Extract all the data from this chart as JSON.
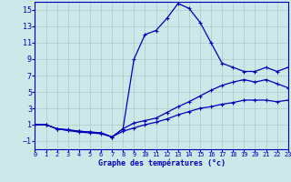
{
  "xlabel": "Graphe des températures (°c)",
  "bg_color": "#cce8e8",
  "grid_color": "#aacccc",
  "line_color": "#0000bb",
  "spine_color": "#0000bb",
  "xlim": [
    0,
    23
  ],
  "ylim": [
    -2,
    16
  ],
  "xticks": [
    0,
    1,
    2,
    3,
    4,
    5,
    6,
    7,
    8,
    9,
    10,
    11,
    12,
    13,
    14,
    15,
    16,
    17,
    18,
    19,
    20,
    21,
    22,
    23
  ],
  "yticks": [
    -1,
    1,
    3,
    5,
    7,
    9,
    11,
    13,
    15
  ],
  "series1_x": [
    0,
    1,
    2,
    3,
    4,
    5,
    6,
    7,
    8,
    9,
    10,
    11,
    12,
    13,
    14,
    15,
    16,
    17,
    18,
    19,
    20,
    21,
    22,
    23
  ],
  "series1_y": [
    1.0,
    1.0,
    0.5,
    0.3,
    0.2,
    0.1,
    0.0,
    -0.5,
    0.5,
    9.0,
    12.0,
    12.5,
    14.0,
    15.8,
    15.2,
    13.5,
    11.0,
    8.5,
    8.0,
    7.5,
    7.5,
    8.0,
    7.5,
    8.0
  ],
  "series2_x": [
    0,
    1,
    2,
    3,
    4,
    5,
    6,
    7,
    8,
    9,
    10,
    11,
    12,
    13,
    14,
    15,
    16,
    17,
    18,
    19,
    20,
    21,
    22,
    23
  ],
  "series2_y": [
    1.0,
    1.0,
    0.5,
    0.4,
    0.2,
    0.1,
    0.0,
    -0.5,
    0.5,
    1.2,
    1.5,
    1.8,
    2.5,
    3.2,
    3.8,
    4.5,
    5.2,
    5.8,
    6.2,
    6.5,
    6.2,
    6.5,
    6.0,
    5.5
  ],
  "series3_x": [
    0,
    1,
    2,
    3,
    4,
    5,
    6,
    7,
    8,
    9,
    10,
    11,
    12,
    13,
    14,
    15,
    16,
    17,
    18,
    19,
    20,
    21,
    22,
    23
  ],
  "series3_y": [
    1.0,
    1.0,
    0.5,
    0.3,
    0.1,
    0.0,
    -0.1,
    -0.5,
    0.2,
    0.6,
    1.0,
    1.3,
    1.7,
    2.2,
    2.6,
    3.0,
    3.2,
    3.5,
    3.7,
    4.0,
    4.0,
    4.0,
    3.8,
    4.0
  ]
}
